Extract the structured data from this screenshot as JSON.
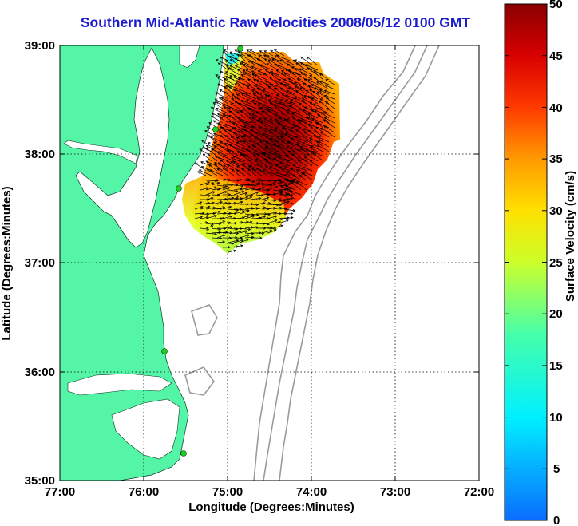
{
  "title": "Southern Mid-Atlantic Raw Velocities 2008/05/12 0100 GMT",
  "xaxis": {
    "label": "Longitude (Degrees:Minutes)",
    "ticks": [
      "77:00",
      "76:00",
      "75:00",
      "74:00",
      "73:00",
      "72:00"
    ]
  },
  "yaxis": {
    "label": "Latitude (Degrees:Minutes)",
    "ticks": [
      "39:00",
      "38:00",
      "37:00",
      "36:00",
      "35:00"
    ]
  },
  "colorbar": {
    "label": "Surface Velocity (cm/s)",
    "ticks": [
      "50",
      "45",
      "40",
      "35",
      "30",
      "25",
      "20",
      "15",
      "10",
      "5",
      "0"
    ],
    "min": 0,
    "max": 50
  },
  "colors": {
    "land": "#55f5a8",
    "title": "#1a1ad0",
    "bathymetry": "#9a9a9a",
    "station": "#20d020"
  },
  "grid": true
}
